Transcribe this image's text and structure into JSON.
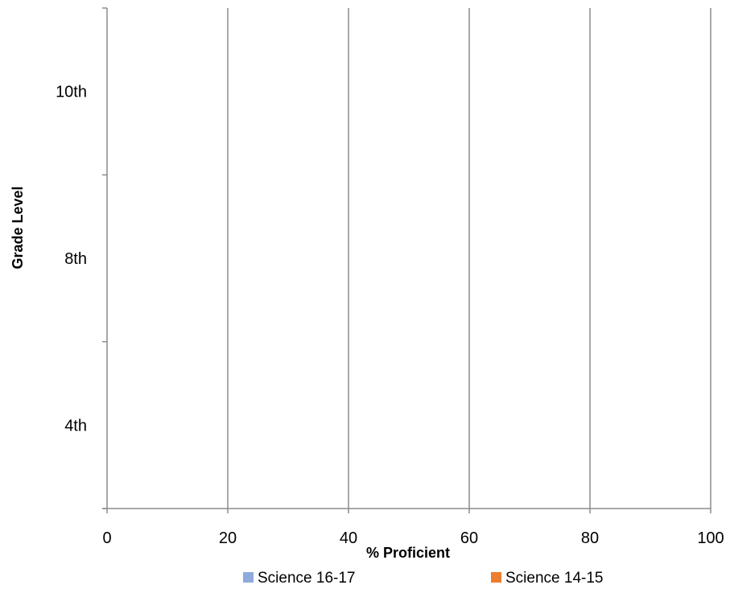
{
  "chart_data": {
    "type": "bar",
    "orientation": "horizontal",
    "categories": [
      "4th",
      "8th",
      "10th"
    ],
    "series": [
      {
        "name": "Science 16-17",
        "values": [
          null,
          null,
          null
        ],
        "color": "#8faadc"
      },
      {
        "name": "Science 14-15",
        "values": [
          null,
          null,
          null
        ],
        "color": "#ed7d31"
      }
    ],
    "xlabel": "% Proficient",
    "ylabel": "Grade Level",
    "xlim": [
      0,
      100
    ],
    "xticks": [
      "0",
      "20",
      "40",
      "60",
      "80",
      "100"
    ],
    "grid": "vertical",
    "legend_position": "bottom"
  }
}
